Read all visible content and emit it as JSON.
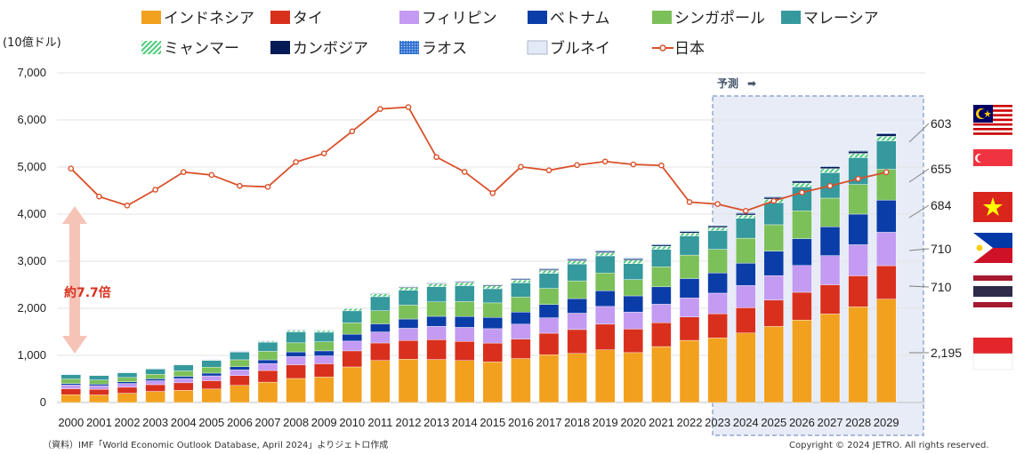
{
  "chart_data": {
    "type": "bar",
    "stacked": true,
    "unit_label": "(10億ドル)",
    "x": [
      "2000",
      "2001",
      "2002",
      "2003",
      "2004",
      "2005",
      "2006",
      "2007",
      "2008",
      "2009",
      "2010",
      "2011",
      "2012",
      "2013",
      "2014",
      "2015",
      "2016",
      "2017",
      "2018",
      "2019",
      "2020",
      "2021",
      "2022",
      "2023",
      "2024",
      "2025",
      "2026",
      "2027",
      "2028",
      "2029"
    ],
    "ylim": [
      0,
      7000
    ],
    "yticks": [
      "0",
      "1,000",
      "2,000",
      "3,000",
      "4,000",
      "5,000",
      "6,000",
      "7,000"
    ],
    "series": [
      {
        "name": "インドネシア",
        "color": "#F2A11F",
        "values": [
          165,
          160,
          196,
          235,
          257,
          286,
          364,
          432,
          510,
          540,
          755,
          893,
          918,
          913,
          891,
          861,
          932,
          1015,
          1042,
          1119,
          1059,
          1187,
          1319,
          1371,
          1475,
          1615,
          1750,
          1880,
          2030,
          2195
        ]
      },
      {
        "name": "タイ",
        "color": "#D9301E",
        "values": [
          126,
          120,
          127,
          143,
          161,
          176,
          208,
          247,
          291,
          282,
          341,
          371,
          397,
          420,
          407,
          401,
          413,
          456,
          507,
          544,
          500,
          506,
          496,
          514,
          537,
          560,
          590,
          620,
          660,
          710
        ]
      },
      {
        "name": "フィリピン",
        "color": "#C39BF2",
        "values": [
          81,
          76,
          81,
          84,
          91,
          103,
          122,
          149,
          174,
          168,
          208,
          234,
          262,
          284,
          297,
          306,
          318,
          328,
          347,
          377,
          362,
          394,
          404,
          437,
          471,
          520,
          570,
          620,
          660,
          710
        ]
      },
      {
        "name": "ベトナム",
        "color": "#0B3DA8",
        "values": [
          31,
          33,
          35,
          40,
          45,
          58,
          66,
          77,
          99,
          106,
          147,
          172,
          196,
          213,
          233,
          239,
          257,
          281,
          310,
          334,
          343,
          369,
          413,
          430,
          476,
          520,
          570,
          610,
          650,
          684
        ]
      },
      {
        "name": "シンガポール",
        "color": "#7CC05A",
        "values": [
          96,
          90,
          92,
          97,
          117,
          127,
          147,
          181,
          193,
          194,
          240,
          280,
          295,
          307,
          315,
          308,
          319,
          343,
          377,
          375,
          347,
          424,
          498,
          501,
          530,
          560,
          590,
          610,
          630,
          655
        ]
      },
      {
        "name": "マレーシア",
        "color": "#35999E",
        "values": [
          94,
          93,
          101,
          111,
          125,
          144,
          163,
          194,
          232,
          202,
          255,
          297,
          314,
          323,
          338,
          301,
          301,
          319,
          359,
          365,
          337,
          373,
          407,
          399,
          422,
          470,
          510,
          540,
          570,
          603
        ]
      },
      {
        "name": "ミャンマー",
        "color": "#4CCB7A",
        "values": [
          9,
          7,
          8,
          10,
          10,
          12,
          15,
          20,
          31,
          36,
          50,
          60,
          60,
          60,
          65,
          60,
          60,
          61,
          67,
          66,
          74,
          62,
          60,
          65,
          70,
          75,
          80,
          85,
          90,
          95
        ]
      },
      {
        "name": "カンボジア",
        "color": "#061A55",
        "values": [
          4,
          4,
          4,
          5,
          5,
          6,
          7,
          9,
          10,
          10,
          11,
          13,
          14,
          15,
          17,
          18,
          20,
          22,
          25,
          27,
          26,
          27,
          30,
          32,
          34,
          37,
          40,
          43,
          46,
          50
        ]
      },
      {
        "name": "ラオス",
        "color": "#5A8FE0",
        "values": [
          2,
          2,
          2,
          2,
          3,
          3,
          4,
          4,
          5,
          6,
          7,
          8,
          10,
          11,
          12,
          14,
          16,
          17,
          18,
          19,
          19,
          19,
          16,
          15,
          16,
          17,
          18,
          19,
          20,
          21
        ]
      },
      {
        "name": "ブルネイ",
        "color": "#E3EAF7",
        "values": [
          6,
          6,
          6,
          7,
          8,
          10,
          12,
          12,
          14,
          11,
          14,
          18,
          19,
          18,
          17,
          13,
          11,
          12,
          14,
          13,
          12,
          14,
          17,
          15,
          15,
          16,
          16,
          17,
          17,
          18
        ]
      },
      {
        "name": "日本",
        "type": "line",
        "color": "#D9502A",
        "values": [
          4968,
          4374,
          4182,
          4519,
          4893,
          4831,
          4601,
          4579,
          5106,
          5289,
          5759,
          6233,
          6272,
          5212,
          4897,
          4445,
          5004,
          4931,
          5041,
          5118,
          5055,
          5034,
          4256,
          4213,
          4070,
          4280,
          4460,
          4600,
          4750,
          4890
        ]
      }
    ],
    "forecast": {
      "label": "予測",
      "arrow": "➡",
      "from": "2023",
      "to": "2029"
    },
    "annotation": {
      "label": "約7.7倍"
    },
    "right_labels": [
      {
        "label": "603",
        "country": "マレーシア"
      },
      {
        "label": "655",
        "country": "シンガポール"
      },
      {
        "label": "684",
        "country": "ベトナム"
      },
      {
        "label": "710",
        "country": "フィリピン"
      },
      {
        "label": "710",
        "country": "タイ"
      },
      {
        "label": "2,195",
        "country": "インドネシア"
      }
    ]
  },
  "source": "（資料）IMF「World Economic Outlook Database, April 2024」よりジェトロ作成",
  "copyright": "Copyright © 2024 JETRO. All rights reserved."
}
